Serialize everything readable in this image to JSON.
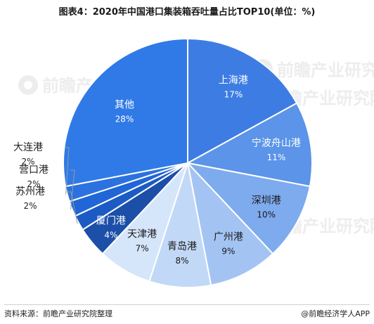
{
  "title": "图表4：2020年中国港口集装箱吞吐量占比TOP10(单位：%)",
  "footer": {
    "source": "资料来源：前瞻产业研究院整理",
    "brand": "@前瞻经济学人APP"
  },
  "watermark": {
    "text": "前瞻产业研究院"
  },
  "chart_data": {
    "type": "pie",
    "title": "图表4：2020年中国港口集装箱吞吐量占比TOP10(单位：%)",
    "unit": "%",
    "slices": [
      {
        "label": "上海港",
        "value": 17,
        "value_label": "17%",
        "color": "#3d7de3"
      },
      {
        "label": "宁波舟山港",
        "value": 11,
        "value_label": "11%",
        "color": "#5b94e8"
      },
      {
        "label": "深圳港",
        "value": 10,
        "value_label": "10%",
        "color": "#7eaaee"
      },
      {
        "label": "广州港",
        "value": 9,
        "value_label": "9%",
        "color": "#a3c4f3"
      },
      {
        "label": "青岛港",
        "value": 8,
        "value_label": "8%",
        "color": "#c2d8f7"
      },
      {
        "label": "天津港",
        "value": 7,
        "value_label": "7%",
        "color": "#d5e5fa"
      },
      {
        "label": "厦门港",
        "value": 4,
        "value_label": "4%",
        "color": "#1b4fa8"
      },
      {
        "label": "苏州港",
        "value": 2,
        "value_label": "2%",
        "color": "#1d5bc4"
      },
      {
        "label": "营口港",
        "value": 2,
        "value_label": "2%",
        "color": "#2166d6"
      },
      {
        "label": "大连港",
        "value": 2,
        "value_label": "2%",
        "color": "#2b72e0"
      },
      {
        "label": "其他",
        "value": 28,
        "value_label": "28%",
        "color": "#2f7ae6"
      }
    ]
  }
}
